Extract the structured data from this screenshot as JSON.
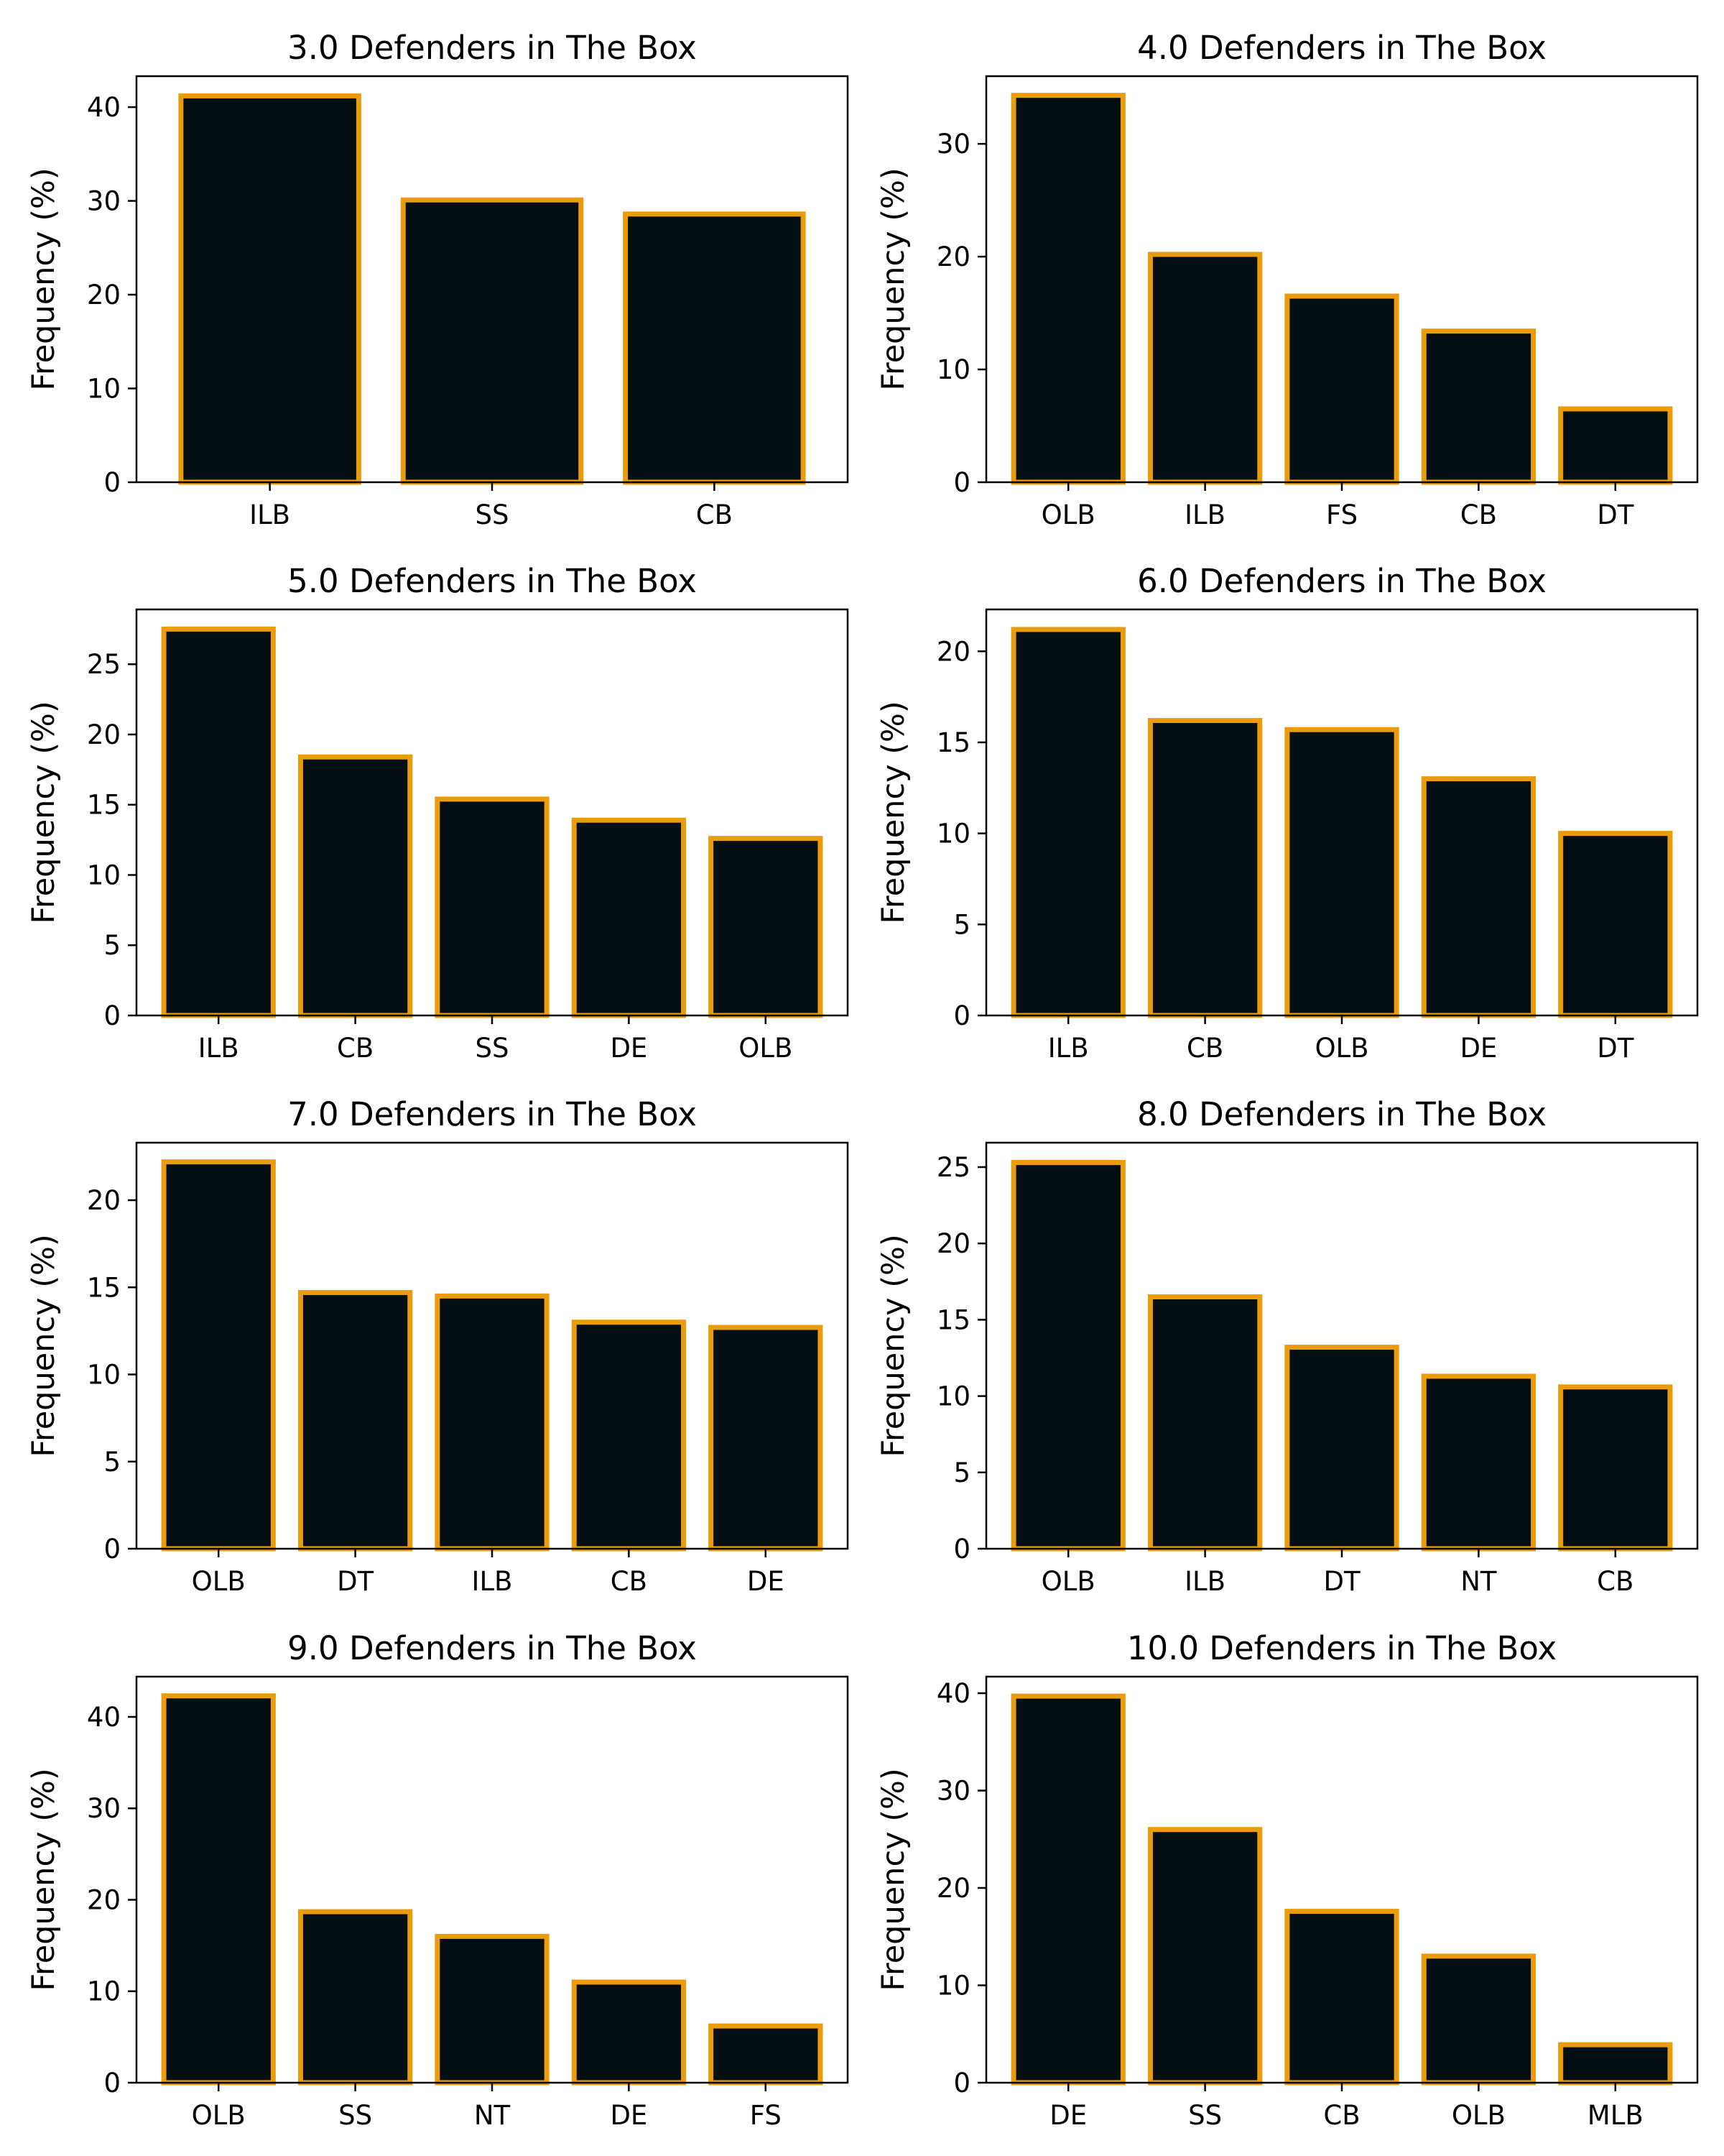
{
  "style": {
    "bar_fill": "#040f13",
    "bar_edge": "#eb9c0c",
    "axes_color": "#000000",
    "background": "#ffffff"
  },
  "chart_data": [
    {
      "type": "bar",
      "title": "3.0 Defenders in The Box",
      "xlabel": "",
      "ylabel": "Frequency (%)",
      "categories": [
        "ILB",
        "SS",
        "CB"
      ],
      "values": [
        41.2,
        30.1,
        28.6
      ],
      "ylim": [
        0,
        43.3
      ],
      "yticks": [
        0,
        10,
        20,
        30,
        40
      ],
      "grid": false,
      "legend": "none"
    },
    {
      "type": "bar",
      "title": "4.0 Defenders in The Box",
      "xlabel": "",
      "ylabel": "Frequency (%)",
      "categories": [
        "OLB",
        "ILB",
        "FS",
        "CB",
        "DT"
      ],
      "values": [
        34.3,
        20.2,
        16.5,
        13.4,
        6.5
      ],
      "ylim": [
        0,
        36.0
      ],
      "yticks": [
        0,
        10,
        20,
        30
      ],
      "grid": false,
      "legend": "none"
    },
    {
      "type": "bar",
      "title": "5.0 Defenders in The Box",
      "xlabel": "",
      "ylabel": "Frequency (%)",
      "categories": [
        "ILB",
        "CB",
        "SS",
        "DE",
        "OLB"
      ],
      "values": [
        27.5,
        18.4,
        15.4,
        13.9,
        12.6
      ],
      "ylim": [
        0,
        28.9
      ],
      "yticks": [
        0,
        5,
        10,
        15,
        20,
        25
      ],
      "grid": false,
      "legend": "none"
    },
    {
      "type": "bar",
      "title": "6.0 Defenders in The Box",
      "xlabel": "",
      "ylabel": "Frequency (%)",
      "categories": [
        "ILB",
        "CB",
        "OLB",
        "DE",
        "DT"
      ],
      "values": [
        21.2,
        16.2,
        15.7,
        13.0,
        10.0
      ],
      "ylim": [
        0,
        22.3
      ],
      "yticks": [
        0,
        5,
        10,
        15,
        20
      ],
      "grid": false,
      "legend": "none"
    },
    {
      "type": "bar",
      "title": "7.0 Defenders in The Box",
      "xlabel": "",
      "ylabel": "Frequency (%)",
      "categories": [
        "OLB",
        "DT",
        "ILB",
        "CB",
        "DE"
      ],
      "values": [
        22.2,
        14.7,
        14.5,
        13.0,
        12.7
      ],
      "ylim": [
        0,
        23.3
      ],
      "yticks": [
        0,
        5,
        10,
        15,
        20
      ],
      "grid": false,
      "legend": "none"
    },
    {
      "type": "bar",
      "title": "8.0 Defenders in The Box",
      "xlabel": "",
      "ylabel": "Frequency (%)",
      "categories": [
        "OLB",
        "ILB",
        "DT",
        "NT",
        "CB"
      ],
      "values": [
        25.3,
        16.5,
        13.2,
        11.3,
        10.6
      ],
      "ylim": [
        0,
        26.6
      ],
      "yticks": [
        0,
        5,
        10,
        15,
        20,
        25
      ],
      "grid": false,
      "legend": "none"
    },
    {
      "type": "bar",
      "title": "9.0 Defenders in The Box",
      "xlabel": "",
      "ylabel": "Frequency (%)",
      "categories": [
        "OLB",
        "SS",
        "NT",
        "DE",
        "FS"
      ],
      "values": [
        42.3,
        18.7,
        16.0,
        11.0,
        6.2
      ],
      "ylim": [
        0,
        44.4
      ],
      "yticks": [
        0,
        10,
        20,
        30,
        40
      ],
      "grid": false,
      "legend": "none"
    },
    {
      "type": "bar",
      "title": "10.0 Defenders in The Box",
      "xlabel": "",
      "ylabel": "Frequency (%)",
      "categories": [
        "DE",
        "SS",
        "CB",
        "OLB",
        "MLB"
      ],
      "values": [
        39.7,
        26.0,
        17.6,
        13.0,
        3.9
      ],
      "ylim": [
        0,
        41.7
      ],
      "yticks": [
        0,
        10,
        20,
        30,
        40
      ],
      "grid": false,
      "legend": "none"
    }
  ]
}
